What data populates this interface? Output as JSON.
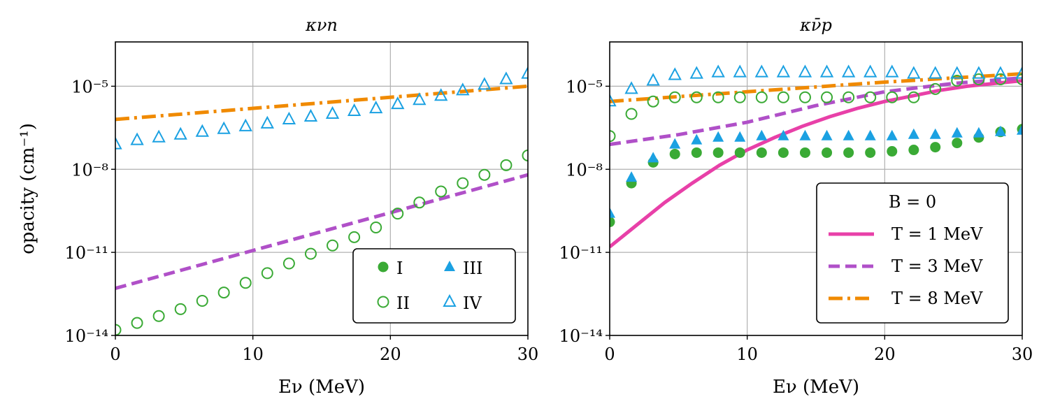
{
  "colors": {
    "green": "#3aaa35",
    "blue": "#1ba1e2",
    "purple": "#b050c8",
    "orange": "#f08a00",
    "magenta": "#e840a8",
    "grid": "#b0b0b0"
  },
  "ylabel": "opacity (cm⁻¹)",
  "chart_data": [
    {
      "type": "scatter",
      "title": "κνn",
      "xlabel": "Eν (MeV)",
      "ylabel": "opacity (cm⁻¹)",
      "xlim": [
        0,
        30
      ],
      "ylim_log10": [
        -14,
        -3.4
      ],
      "yscale": "log",
      "grid": true,
      "xticks": [
        0,
        10,
        20,
        30
      ],
      "yticks": [
        "10⁻¹⁴",
        "10⁻¹¹",
        "10⁻⁸",
        "10⁻⁵"
      ],
      "ytick_exps": [
        -14,
        -11,
        -8,
        -5
      ],
      "legend_position": "lower-right",
      "lines": [
        {
          "name": "T = 3 MeV",
          "style": "dashed",
          "color": "purple",
          "x": [
            0,
            30
          ],
          "log10_y": [
            -12.3,
            -8.2
          ]
        },
        {
          "name": "T = 8 MeV",
          "style": "dashdot",
          "color": "orange",
          "x": [
            0,
            30
          ],
          "log10_y": [
            -6.2,
            -5.0
          ]
        }
      ],
      "series": [
        {
          "name": "II",
          "marker": "open-circle",
          "color": "green",
          "x": [
            0,
            1.58,
            3.16,
            4.74,
            6.32,
            7.89,
            9.47,
            11.05,
            12.63,
            14.21,
            15.79,
            17.37,
            18.95,
            20.53,
            22.11,
            23.68,
            25.26,
            26.84,
            28.42,
            30
          ],
          "log10_y": [
            -13.8,
            -13.55,
            -13.3,
            -13.05,
            -12.75,
            -12.45,
            -12.1,
            -11.75,
            -11.4,
            -11.05,
            -10.75,
            -10.45,
            -10.1,
            -9.6,
            -9.2,
            -8.8,
            -8.5,
            -8.2,
            -7.85,
            -7.5
          ]
        },
        {
          "name": "IV",
          "marker": "open-triangle",
          "color": "blue",
          "x": [
            0,
            1.58,
            3.16,
            4.74,
            6.32,
            7.89,
            9.47,
            11.05,
            12.63,
            14.21,
            15.79,
            17.37,
            18.95,
            20.53,
            22.11,
            23.68,
            25.26,
            26.84,
            28.42,
            30
          ],
          "log10_y": [
            -7.1,
            -6.95,
            -6.85,
            -6.75,
            -6.65,
            -6.55,
            -6.45,
            -6.35,
            -6.2,
            -6.1,
            -6.0,
            -5.9,
            -5.8,
            -5.65,
            -5.5,
            -5.35,
            -5.15,
            -4.95,
            -4.75,
            -4.55
          ]
        }
      ],
      "legend": [
        {
          "label": "I",
          "marker": "filled-circle",
          "color": "green"
        },
        {
          "label": "III",
          "marker": "filled-triangle",
          "color": "blue"
        },
        {
          "label": "II",
          "marker": "open-circle",
          "color": "green"
        },
        {
          "label": "IV",
          "marker": "open-triangle",
          "color": "blue"
        }
      ]
    },
    {
      "type": "scatter",
      "title": "κν̄p",
      "xlabel": "Eν (MeV)",
      "xlim": [
        0,
        30
      ],
      "ylim_log10": [
        -14,
        -3.4
      ],
      "yscale": "log",
      "grid": true,
      "xticks": [
        0,
        10,
        20,
        30
      ],
      "yticks": [
        "10⁻¹⁴",
        "10⁻¹¹",
        "10⁻⁸",
        "10⁻⁵"
      ],
      "ytick_exps": [
        -14,
        -11,
        -8,
        -5
      ],
      "legend_position": "lower-right",
      "legend_title": "B = 0",
      "lines": [
        {
          "name": "T = 1 MeV",
          "style": "solid",
          "color": "magenta",
          "x": [
            0,
            2,
            4,
            6,
            8,
            10,
            12,
            14,
            16,
            18,
            20,
            22,
            24,
            26,
            28,
            30
          ],
          "log10_y": [
            -10.8,
            -10.0,
            -9.2,
            -8.5,
            -7.85,
            -7.3,
            -6.85,
            -6.45,
            -6.1,
            -5.8,
            -5.55,
            -5.35,
            -5.15,
            -5.0,
            -4.9,
            -4.8
          ]
        },
        {
          "name": "T = 3 MeV",
          "style": "dashed",
          "color": "purple",
          "x": [
            0,
            5,
            10,
            15,
            20,
            25,
            30
          ],
          "log10_y": [
            -7.1,
            -6.75,
            -6.3,
            -5.7,
            -5.2,
            -4.9,
            -4.7
          ]
        },
        {
          "name": "T = 8 MeV",
          "style": "dashdot",
          "color": "orange",
          "x": [
            0,
            10,
            20,
            30
          ],
          "log10_y": [
            -5.55,
            -5.2,
            -4.85,
            -4.55
          ]
        }
      ],
      "series": [
        {
          "name": "I",
          "marker": "filled-circle",
          "color": "green",
          "x": [
            0,
            1.58,
            3.16,
            4.74,
            6.32,
            7.89,
            9.47,
            11.05,
            12.63,
            14.21,
            15.79,
            17.37,
            18.95,
            20.53,
            22.11,
            23.68,
            25.26,
            26.84,
            28.42,
            30
          ],
          "log10_y": [
            -9.9,
            -8.5,
            -7.75,
            -7.45,
            -7.4,
            -7.4,
            -7.4,
            -7.4,
            -7.4,
            -7.4,
            -7.4,
            -7.4,
            -7.4,
            -7.35,
            -7.3,
            -7.2,
            -7.05,
            -6.85,
            -6.65,
            -6.55
          ]
        },
        {
          "name": "II",
          "marker": "open-circle",
          "color": "green",
          "x": [
            0,
            1.58,
            3.16,
            4.74,
            6.32,
            7.89,
            9.47,
            11.05,
            12.63,
            14.21,
            15.79,
            17.37,
            18.95,
            20.53,
            22.11,
            23.68,
            25.26,
            26.84,
            28.42,
            30
          ],
          "log10_y": [
            -6.8,
            -6.0,
            -5.55,
            -5.4,
            -5.4,
            -5.4,
            -5.4,
            -5.4,
            -5.4,
            -5.4,
            -5.4,
            -5.4,
            -5.4,
            -5.4,
            -5.4,
            -5.1,
            -4.8,
            -4.75,
            -4.75,
            -4.75
          ]
        },
        {
          "name": "III",
          "marker": "filled-triangle",
          "color": "blue",
          "x": [
            0,
            1.58,
            3.16,
            4.74,
            6.32,
            7.89,
            9.47,
            11.05,
            12.63,
            14.21,
            15.79,
            17.37,
            18.95,
            20.53,
            22.11,
            23.68,
            25.26,
            26.84,
            28.42,
            30
          ],
          "log10_y": [
            -9.6,
            -8.3,
            -7.6,
            -7.1,
            -6.95,
            -6.85,
            -6.85,
            -6.8,
            -6.8,
            -6.8,
            -6.8,
            -6.8,
            -6.8,
            -6.8,
            -6.75,
            -6.75,
            -6.7,
            -6.7,
            -6.65,
            -6.6
          ]
        },
        {
          "name": "IV",
          "marker": "open-triangle",
          "color": "blue",
          "x": [
            0,
            1.58,
            3.16,
            4.74,
            6.32,
            7.89,
            9.47,
            11.05,
            12.63,
            14.21,
            15.79,
            17.37,
            18.95,
            20.53,
            22.11,
            23.68,
            25.26,
            26.84,
            28.42,
            30
          ],
          "log10_y": [
            -5.55,
            -5.1,
            -4.8,
            -4.6,
            -4.55,
            -4.5,
            -4.5,
            -4.5,
            -4.5,
            -4.5,
            -4.5,
            -4.5,
            -4.5,
            -4.5,
            -4.55,
            -4.55,
            -4.55,
            -4.55,
            -4.55,
            -4.55
          ]
        }
      ],
      "legend": [
        {
          "label": "T = 1 MeV",
          "style": "solid",
          "color": "magenta"
        },
        {
          "label": "T = 3 MeV",
          "style": "dashed",
          "color": "purple"
        },
        {
          "label": "T = 8 MeV",
          "style": "dashdot",
          "color": "orange"
        }
      ]
    }
  ]
}
